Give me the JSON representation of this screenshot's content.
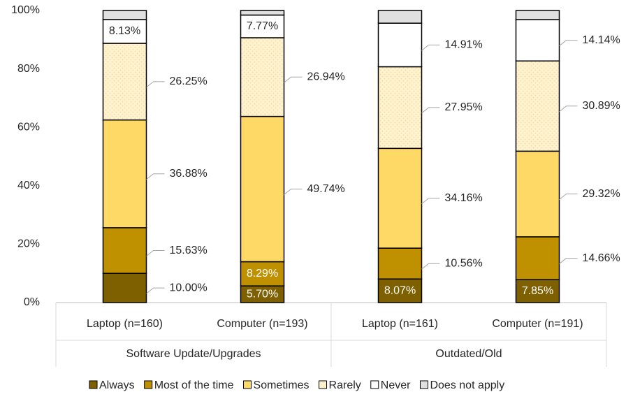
{
  "chart_data": {
    "type": "stacked_bar",
    "categories": [
      "Laptop (n=160)",
      "Computer (n=193)",
      "Laptop (n=161)",
      "Computer (n=191)"
    ],
    "groups": [
      "Software Update/Upgrades",
      "Outdated/Old"
    ],
    "series": [
      {
        "name": "Always",
        "color": "#7f6000",
        "values": [
          10.0,
          5.7,
          8.07,
          7.85
        ],
        "value_labels": [
          "10.00%",
          "5.70%",
          "8.07%",
          "7.85%"
        ]
      },
      {
        "name": "Most of the time",
        "color": "#bf9000",
        "values": [
          15.63,
          8.29,
          10.56,
          14.66
        ],
        "value_labels": [
          "15.63%",
          "8.29%",
          "10.56%",
          "14.66%"
        ]
      },
      {
        "name": "Sometimes",
        "color": "#ffd966",
        "values": [
          36.88,
          49.74,
          34.16,
          29.32
        ],
        "value_labels": [
          "36.88%",
          "49.74%",
          "34.16%",
          "29.32%"
        ]
      },
      {
        "name": "Rarely",
        "color": "#fff2cc",
        "values": [
          26.25,
          26.94,
          27.95,
          30.89
        ],
        "value_labels": [
          "26.25%",
          "26.94%",
          "27.95%",
          "30.89%"
        ]
      },
      {
        "name": "Never",
        "color": "#ffffff",
        "values": [
          8.13,
          7.77,
          14.91,
          14.14
        ],
        "value_labels": [
          "8.13%",
          "7.77%",
          "14.91%",
          "14.14%"
        ]
      },
      {
        "name": "Does not apply",
        "color": "#e0e0e0",
        "values": [
          3.11,
          1.56,
          4.35,
          3.14
        ]
      }
    ],
    "ylim": [
      0,
      100
    ],
    "yticks": [
      {
        "value": 0,
        "label": "0%"
      },
      {
        "value": 20,
        "label": "20%"
      },
      {
        "value": 40,
        "label": "40%"
      },
      {
        "value": 60,
        "label": "60%"
      },
      {
        "value": 80,
        "label": "80%"
      },
      {
        "value": 100,
        "label": "100%"
      }
    ]
  }
}
